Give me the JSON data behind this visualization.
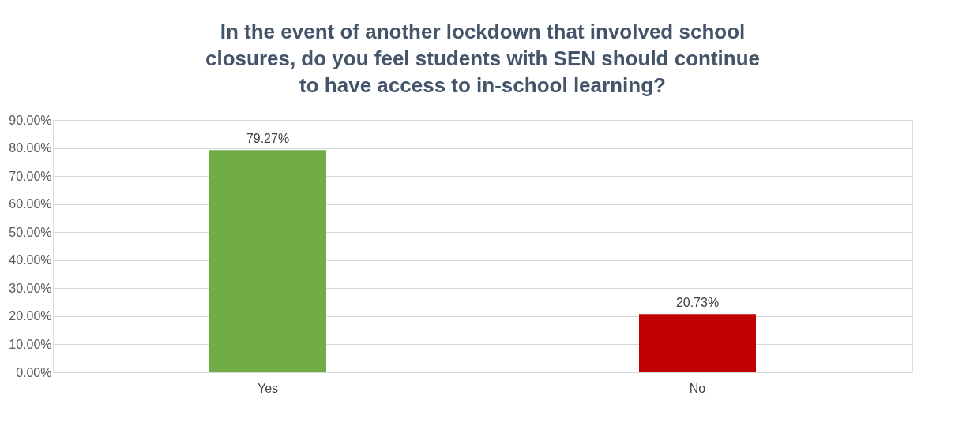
{
  "chart_data": {
    "type": "bar",
    "title": "In the event of another lockdown that involved school closures, do you feel students with SEN should continue to have access to in-school learning?",
    "categories": [
      "Yes",
      "No"
    ],
    "values": [
      79.27,
      20.73
    ],
    "colors": [
      "#70ad47",
      "#c00000"
    ],
    "value_labels": [
      "79.27%",
      "20.73%"
    ],
    "ylim": [
      0,
      90
    ],
    "yticks": [
      {
        "value": 0,
        "label": "0.00%"
      },
      {
        "value": 10,
        "label": "10.00%"
      },
      {
        "value": 20,
        "label": "20.00%"
      },
      {
        "value": 30,
        "label": "30.00%"
      },
      {
        "value": 40,
        "label": "40.00%"
      },
      {
        "value": 50,
        "label": "50.00%"
      },
      {
        "value": 60,
        "label": "60.00%"
      },
      {
        "value": 70,
        "label": "70.00%"
      },
      {
        "value": 80,
        "label": "80.00%"
      },
      {
        "value": 90,
        "label": "90.00%"
      }
    ],
    "grid": "y"
  }
}
